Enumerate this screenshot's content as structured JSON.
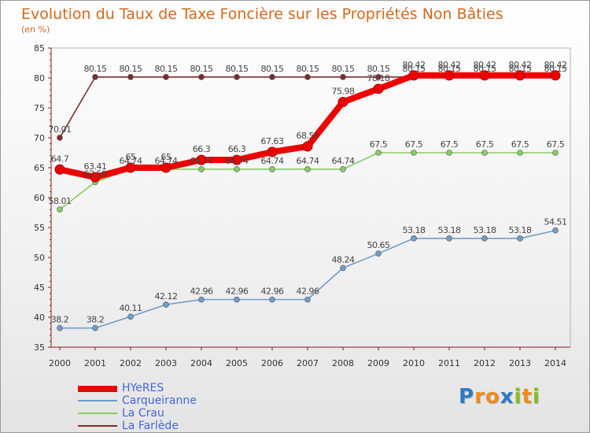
{
  "chart_data": {
    "type": "line",
    "title": "Evolution du Taux de Taxe Foncière sur les Propriétés Non Bâties",
    "subtitle": "(en %)",
    "x": [
      "2000",
      "2001",
      "2002",
      "2003",
      "2004",
      "2005",
      "2006",
      "2007",
      "2008",
      "2009",
      "2010",
      "2011",
      "2012",
      "2013",
      "2014"
    ],
    "ylim": [
      35,
      85
    ],
    "yticks": [
      "35",
      "40",
      "45",
      "50",
      "55",
      "60",
      "65",
      "70",
      "75",
      "80",
      "85"
    ],
    "grid": false,
    "series": [
      {
        "name": "La Farlède",
        "color": "#7b2d2d",
        "style": "thin",
        "values": [
          70.01,
          80.15,
          80.15,
          80.15,
          80.15,
          80.15,
          80.15,
          80.15,
          80.15,
          80.15,
          80.15,
          80.15,
          80.15,
          80.15,
          80.15
        ],
        "labels": [
          "70.01",
          "80.15",
          "80.15",
          "80.15",
          "80.15",
          "80.15",
          "80.15",
          "80.15",
          "80.15",
          "80.15",
          "80.15",
          "80.15",
          "80.15",
          "80.15",
          "80.15"
        ]
      },
      {
        "name": "La Crau",
        "color": "#88cc66",
        "style": "thin",
        "values": [
          58.01,
          62.59,
          64.74,
          64.74,
          64.74,
          64.74,
          64.74,
          64.74,
          64.74,
          67.5,
          67.5,
          67.5,
          67.5,
          67.5,
          67.5
        ],
        "labels": [
          "58.01",
          "62.59",
          "64.74",
          "64.74",
          "64.74",
          "64.74",
          "64.74",
          "64.74",
          "64.74",
          "67.5",
          "67.5",
          "67.5",
          "67.5",
          "67.5",
          "67.5"
        ]
      },
      {
        "name": "Carqueiranne",
        "color": "#6f9dc8",
        "style": "thin",
        "values": [
          38.2,
          38.2,
          40.11,
          42.12,
          42.96,
          42.96,
          42.96,
          42.96,
          48.24,
          50.65,
          53.18,
          53.18,
          53.18,
          53.18,
          54.51
        ],
        "labels": [
          "38.2",
          "38.2",
          "40.11",
          "42.12",
          "42.96",
          "42.96",
          "42.96",
          "42.96",
          "48.24",
          "50.65",
          "53.18",
          "53.18",
          "53.18",
          "53.18",
          "54.51"
        ]
      },
      {
        "name": "HYeRES",
        "color": "#ee0000",
        "style": "thick",
        "values": [
          64.7,
          63.41,
          65,
          65,
          66.3,
          66.3,
          67.63,
          68.55,
          75.98,
          78.18,
          80.42,
          80.42,
          80.42,
          80.42,
          80.42
        ],
        "labels": [
          "64.7",
          "63.41",
          "65",
          "65",
          "66.3",
          "66.3",
          "67.63",
          "68.55",
          "75.98",
          "78.18",
          "80.42",
          "80.42",
          "80.42",
          "80.42",
          "80.42"
        ]
      }
    ]
  },
  "legend": {
    "items": [
      {
        "label": "HYeRES",
        "color": "#ee0000",
        "style": "thick"
      },
      {
        "label": "Carqueiranne",
        "color": "#6f9dc8",
        "style": "thin"
      },
      {
        "label": "La Crau",
        "color": "#88cc66",
        "style": "thin"
      },
      {
        "label": "La Farlède",
        "color": "#7b2d2d",
        "style": "thin"
      }
    ]
  },
  "logo": {
    "letters": [
      "P",
      "r",
      "o",
      "x",
      "i",
      "t",
      "i"
    ],
    "colors": [
      "#2e7bc4",
      "#f08a1c",
      "#f08a1c",
      "#2e7bc4",
      "#88bb22",
      "#f08a1c",
      "#88bb22"
    ]
  }
}
